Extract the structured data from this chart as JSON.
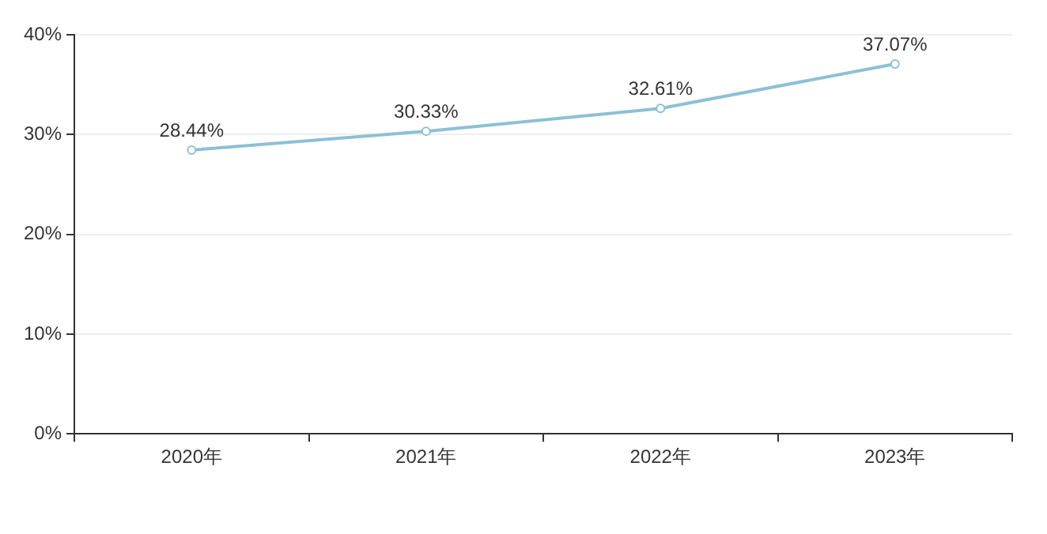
{
  "chart_data": {
    "type": "line",
    "categories": [
      "2020年",
      "2021年",
      "2022年",
      "2023年"
    ],
    "values": [
      28.44,
      30.33,
      32.61,
      37.07
    ],
    "color": "#8cc0d6",
    "value_labels": [
      "28.44%",
      "30.33%",
      "32.61%",
      "37.07%"
    ],
    "ylim": [
      0,
      40
    ],
    "yticks": [
      {
        "value": 0,
        "label": "0%"
      },
      {
        "value": 10,
        "label": "10%"
      },
      {
        "value": 20,
        "label": "20%"
      },
      {
        "value": 30,
        "label": "30%"
      },
      {
        "value": 40,
        "label": "40%"
      }
    ],
    "grid": "y",
    "marker": "circle",
    "line_style": "solid"
  }
}
